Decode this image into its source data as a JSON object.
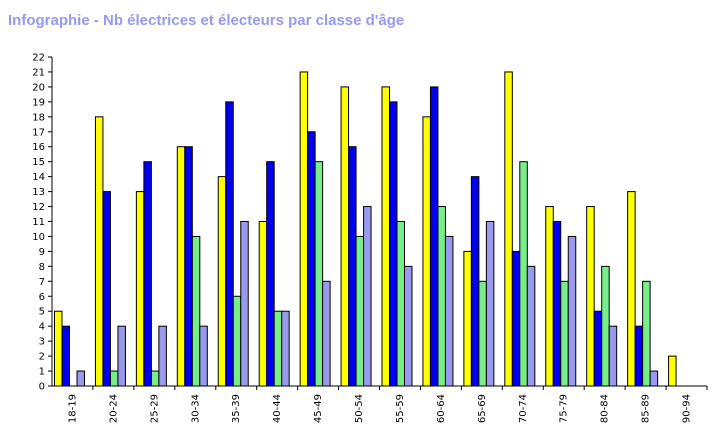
{
  "chart_data": {
    "type": "bar",
    "title": "Infographie - Nb électrices et électeurs par classe d'âge",
    "categories": [
      "18-19",
      "20-24",
      "25-29",
      "30-34",
      "35-39",
      "40-44",
      "45-49",
      "50-54",
      "55-59",
      "60-64",
      "65-69",
      "70-74",
      "75-79",
      "80-84",
      "85-89",
      "90-94"
    ],
    "series": [
      {
        "color": "#ffff00",
        "values": [
          5,
          18,
          13,
          16,
          14,
          11,
          21,
          20,
          20,
          18,
          9,
          21,
          12,
          12,
          13,
          2
        ]
      },
      {
        "color": "#0000ee",
        "values": [
          4,
          13,
          15,
          16,
          19,
          15,
          17,
          16,
          19,
          20,
          14,
          9,
          11,
          5,
          4,
          0
        ]
      },
      {
        "color": "#77ee88",
        "values": [
          0,
          1,
          1,
          10,
          6,
          5,
          15,
          10,
          11,
          12,
          7,
          15,
          7,
          8,
          7,
          0
        ]
      },
      {
        "color": "#9999ee",
        "values": [
          1,
          4,
          4,
          4,
          11,
          5,
          7,
          12,
          8,
          10,
          11,
          8,
          10,
          4,
          1,
          0
        ]
      }
    ],
    "ylim": [
      0,
      22
    ],
    "yticks": [
      "0",
      "1",
      "2",
      "3",
      "4",
      "5",
      "6",
      "7",
      "8",
      "9",
      "10",
      "11",
      "12",
      "13",
      "14",
      "15",
      "16",
      "17",
      "18",
      "19",
      "20",
      "21",
      "22"
    ],
    "grid": false,
    "legend": "none"
  }
}
